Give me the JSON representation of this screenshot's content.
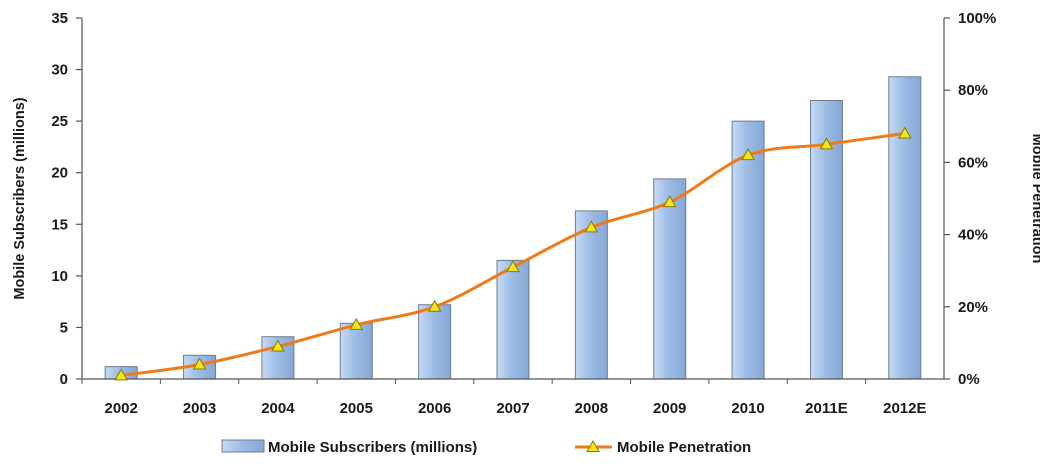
{
  "chart_data": {
    "type": "bar",
    "categories": [
      "2002",
      "2003",
      "2004",
      "2005",
      "2006",
      "2007",
      "2008",
      "2009",
      "2010",
      "2011E",
      "2012E"
    ],
    "series": [
      {
        "name": "Mobile Subscribers (millions)",
        "type": "bar",
        "axis": "left",
        "values": [
          1.2,
          2.3,
          4.1,
          5.4,
          7.2,
          11.5,
          16.3,
          19.4,
          25.0,
          27.0,
          29.3
        ],
        "color": "#9dbde6"
      },
      {
        "name": "Mobile Penetration",
        "type": "line",
        "axis": "right",
        "values": [
          1,
          4,
          9,
          15,
          20,
          31,
          42,
          49,
          62,
          65,
          68
        ],
        "color": "#f07a1a",
        "marker_color": "#f2e61a"
      }
    ],
    "ylabel": "Mobile Subscribers (millions)",
    "y2label": "Mobile Penetration",
    "ylim": [
      0,
      35
    ],
    "yticks": [
      0,
      5,
      10,
      15,
      20,
      25,
      30,
      35
    ],
    "y2lim": [
      0,
      100
    ],
    "y2ticks": [
      0,
      20,
      40,
      60,
      80,
      100
    ],
    "y2tick_labels": [
      "0%",
      "20%",
      "40%",
      "60%",
      "80%",
      "100%"
    ],
    "grid": false,
    "legend_position": "bottom"
  }
}
